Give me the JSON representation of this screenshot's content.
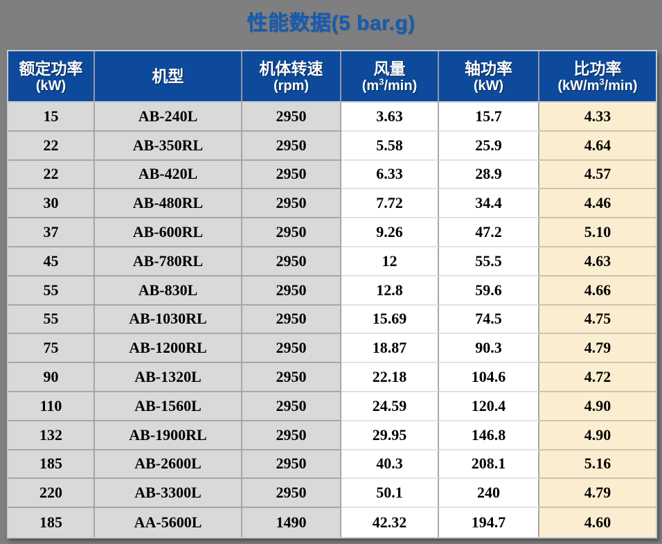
{
  "page": {
    "title": "性能数据(5 bar.g)"
  },
  "colors": {
    "page_bg": "#7F7F7F",
    "title_text": "#135CB4",
    "header_bg": "#0E4A9B",
    "header_text": "#FFFFFF",
    "gray_cell_bg": "#D9D9D9",
    "white_cell_bg": "#FFFFFF",
    "cream_cell_bg": "#FBEED0",
    "grid_line": "#A6A6A6",
    "data_text": "#000000"
  },
  "chart_data": {
    "type": "table",
    "title": "性能数据(5 bar.g)",
    "columns": [
      {
        "title": "额定功率",
        "unit_parts": [
          {
            "t": "(kW)"
          }
        ]
      },
      {
        "title": "机型",
        "unit_parts": []
      },
      {
        "title": "机体转速",
        "unit_parts": [
          {
            "t": "(rpm)"
          }
        ]
      },
      {
        "title": "风量",
        "unit_parts": [
          {
            "t": "(m"
          },
          {
            "sup": "3"
          },
          {
            "t": "/min)"
          }
        ]
      },
      {
        "title": "轴功率",
        "unit_parts": [
          {
            "t": "(kW)"
          }
        ]
      },
      {
        "title": "比功率",
        "unit_parts": [
          {
            "t": "(kW/m"
          },
          {
            "sup": "3"
          },
          {
            "t": "/min)"
          }
        ]
      }
    ],
    "rows": [
      [
        "15",
        "AB-240L",
        "2950",
        "3.63",
        "15.7",
        "4.33"
      ],
      [
        "22",
        "AB-350RL",
        "2950",
        "5.58",
        "25.9",
        "4.64"
      ],
      [
        "22",
        "AB-420L",
        "2950",
        "6.33",
        "28.9",
        "4.57"
      ],
      [
        "30",
        "AB-480RL",
        "2950",
        "7.72",
        "34.4",
        "4.46"
      ],
      [
        "37",
        "AB-600RL",
        "2950",
        "9.26",
        "47.2",
        "5.10"
      ],
      [
        "45",
        "AB-780RL",
        "2950",
        "12",
        "55.5",
        "4.63"
      ],
      [
        "55",
        "AB-830L",
        "2950",
        "12.8",
        "59.6",
        "4.66"
      ],
      [
        "55",
        "AB-1030RL",
        "2950",
        "15.69",
        "74.5",
        "4.75"
      ],
      [
        "75",
        "AB-1200RL",
        "2950",
        "18.87",
        "90.3",
        "4.79"
      ],
      [
        "90",
        "AB-1320L",
        "2950",
        "22.18",
        "104.6",
        "4.72"
      ],
      [
        "110",
        "AB-1560L",
        "2950",
        "24.59",
        "120.4",
        "4.90"
      ],
      [
        "132",
        "AB-1900RL",
        "2950",
        "29.95",
        "146.8",
        "4.90"
      ],
      [
        "185",
        "AB-2600L",
        "2950",
        "40.3",
        "208.1",
        "5.16"
      ],
      [
        "220",
        "AB-3300L",
        "2950",
        "50.1",
        "240",
        "4.79"
      ],
      [
        "185",
        "AA-5600L",
        "1490",
        "42.32",
        "194.7",
        "4.60"
      ]
    ]
  }
}
